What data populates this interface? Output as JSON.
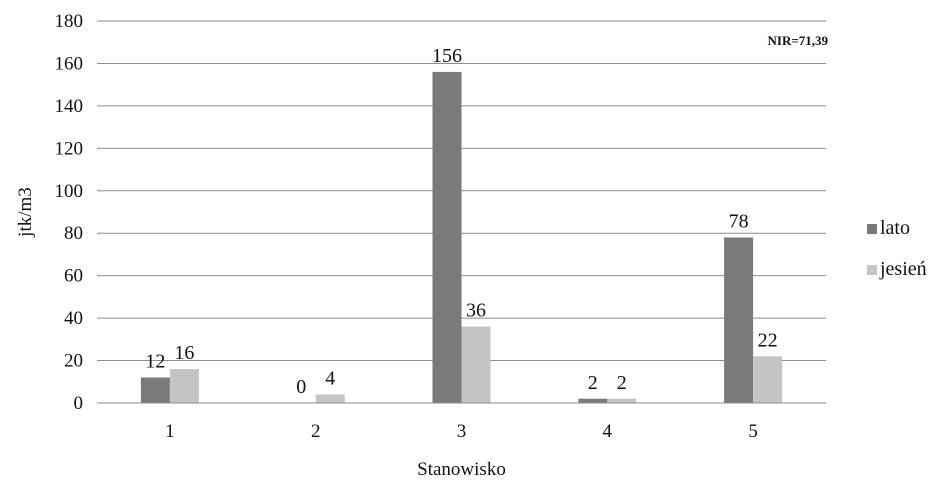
{
  "chart_data": {
    "type": "bar",
    "title": "",
    "xlabel": "Stanowisko",
    "ylabel": "jtk/m3",
    "categories": [
      "1",
      "2",
      "3",
      "4",
      "5"
    ],
    "series": [
      {
        "name": "lato",
        "values": [
          12,
          0,
          156,
          2,
          78
        ],
        "color": "#7a7a7a"
      },
      {
        "name": "jesień",
        "values": [
          16,
          4,
          36,
          2,
          22
        ],
        "color": "#c4c4c4"
      }
    ],
    "ylim": [
      0,
      180
    ],
    "yticks": [
      0,
      20,
      40,
      60,
      80,
      100,
      120,
      140,
      160,
      180
    ],
    "grid": true,
    "legend_position": "right",
    "annotation": "NIR=71,39"
  }
}
